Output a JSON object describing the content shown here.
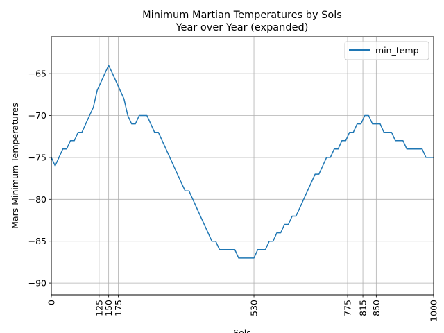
{
  "chart_data": {
    "type": "line",
    "title_line1": "Minimum Martian Temperatures by Sols",
    "title_line2": "Year over Year (expanded)",
    "xlabel": "Sols",
    "ylabel": "Mars Minimum Temperatures",
    "xlim": [
      0,
      1000
    ],
    "ylim": [
      -91.4,
      -60.6
    ],
    "x_ticks": [
      0,
      125,
      150,
      175,
      530,
      775,
      815,
      850,
      1000
    ],
    "x_tick_labels": [
      "0",
      "125",
      "150",
      "175",
      "530",
      "775",
      "815",
      "850",
      "1000"
    ],
    "y_ticks": [
      -65,
      -70,
      -75,
      -80,
      -85,
      -90
    ],
    "y_tick_labels": [
      "−65",
      "−70",
      "−75",
      "−80",
      "−85",
      "−90"
    ],
    "grid": true,
    "legend_position": "top-right",
    "series": [
      {
        "name": "min_temp",
        "color": "#1f77b4",
        "x": [
          0,
          10,
          20,
          30,
          40,
          50,
          60,
          70,
          80,
          90,
          100,
          110,
          120,
          130,
          140,
          150,
          160,
          170,
          180,
          190,
          200,
          210,
          220,
          230,
          240,
          250,
          260,
          270,
          280,
          290,
          300,
          310,
          320,
          330,
          340,
          350,
          360,
          370,
          380,
          390,
          400,
          410,
          420,
          430,
          440,
          450,
          460,
          470,
          480,
          490,
          500,
          510,
          520,
          530,
          540,
          550,
          560,
          570,
          580,
          590,
          600,
          610,
          620,
          630,
          640,
          650,
          660,
          670,
          680,
          690,
          700,
          710,
          720,
          730,
          740,
          750,
          760,
          770,
          780,
          790,
          800,
          810,
          820,
          830,
          840,
          850,
          860,
          870,
          880,
          890,
          900,
          910,
          920,
          930,
          940,
          950,
          960,
          970,
          980,
          990,
          1000
        ],
        "values": [
          -75,
          -76,
          -75,
          -74,
          -74,
          -73,
          -73,
          -72,
          -72,
          -71,
          -70,
          -69,
          -67,
          -66,
          -65,
          -64,
          -65,
          -66,
          -67,
          -68,
          -70,
          -71,
          -71,
          -70,
          -70,
          -70,
          -71,
          -72,
          -72,
          -73,
          -74,
          -75,
          -76,
          -77,
          -78,
          -79,
          -79,
          -80,
          -81,
          -82,
          -83,
          -84,
          -85,
          -85,
          -86,
          -86,
          -86,
          -86,
          -86,
          -87,
          -87,
          -87,
          -87,
          -87,
          -86,
          -86,
          -86,
          -85,
          -85,
          -84,
          -84,
          -83,
          -83,
          -82,
          -82,
          -81,
          -80,
          -79,
          -78,
          -77,
          -77,
          -76,
          -75,
          -75,
          -74,
          -74,
          -73,
          -73,
          -72,
          -72,
          -71,
          -71,
          -70,
          -70,
          -71,
          -71,
          -71,
          -72,
          -72,
          -72,
          -73,
          -73,
          -73,
          -74,
          -74,
          -74,
          -74,
          -74,
          -75,
          -75,
          -75
        ]
      }
    ]
  }
}
